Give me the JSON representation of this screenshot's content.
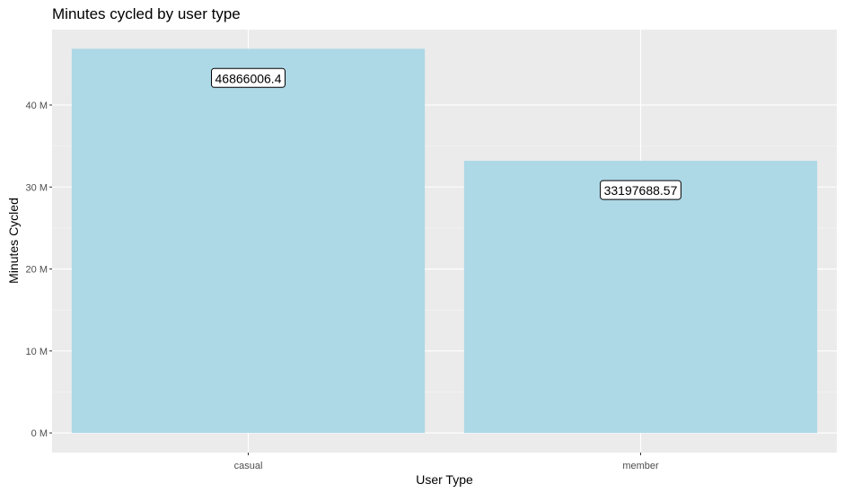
{
  "chart_data": {
    "type": "bar",
    "title": "Minutes cycled by user type",
    "xlabel": "User Type",
    "ylabel": "Minutes Cycled",
    "categories": [
      "casual",
      "member"
    ],
    "values": [
      46866006.4,
      33197688.57
    ],
    "data_labels": [
      "46866006.4",
      "33197688.57"
    ],
    "y_ticks": [
      {
        "value": 0,
        "label": "0 M"
      },
      {
        "value": 10000000,
        "label": "10 M"
      },
      {
        "value": 20000000,
        "label": "20 M"
      },
      {
        "value": 30000000,
        "label": "30 M"
      },
      {
        "value": 40000000,
        "label": "40 M"
      }
    ],
    "ylim": [
      -2400000,
      49200000
    ],
    "grid": true,
    "colors": {
      "bar": "#add8e6",
      "panel": "#ebebeb",
      "grid_major": "#ffffff",
      "grid_minor": "#f5f5f5"
    }
  }
}
